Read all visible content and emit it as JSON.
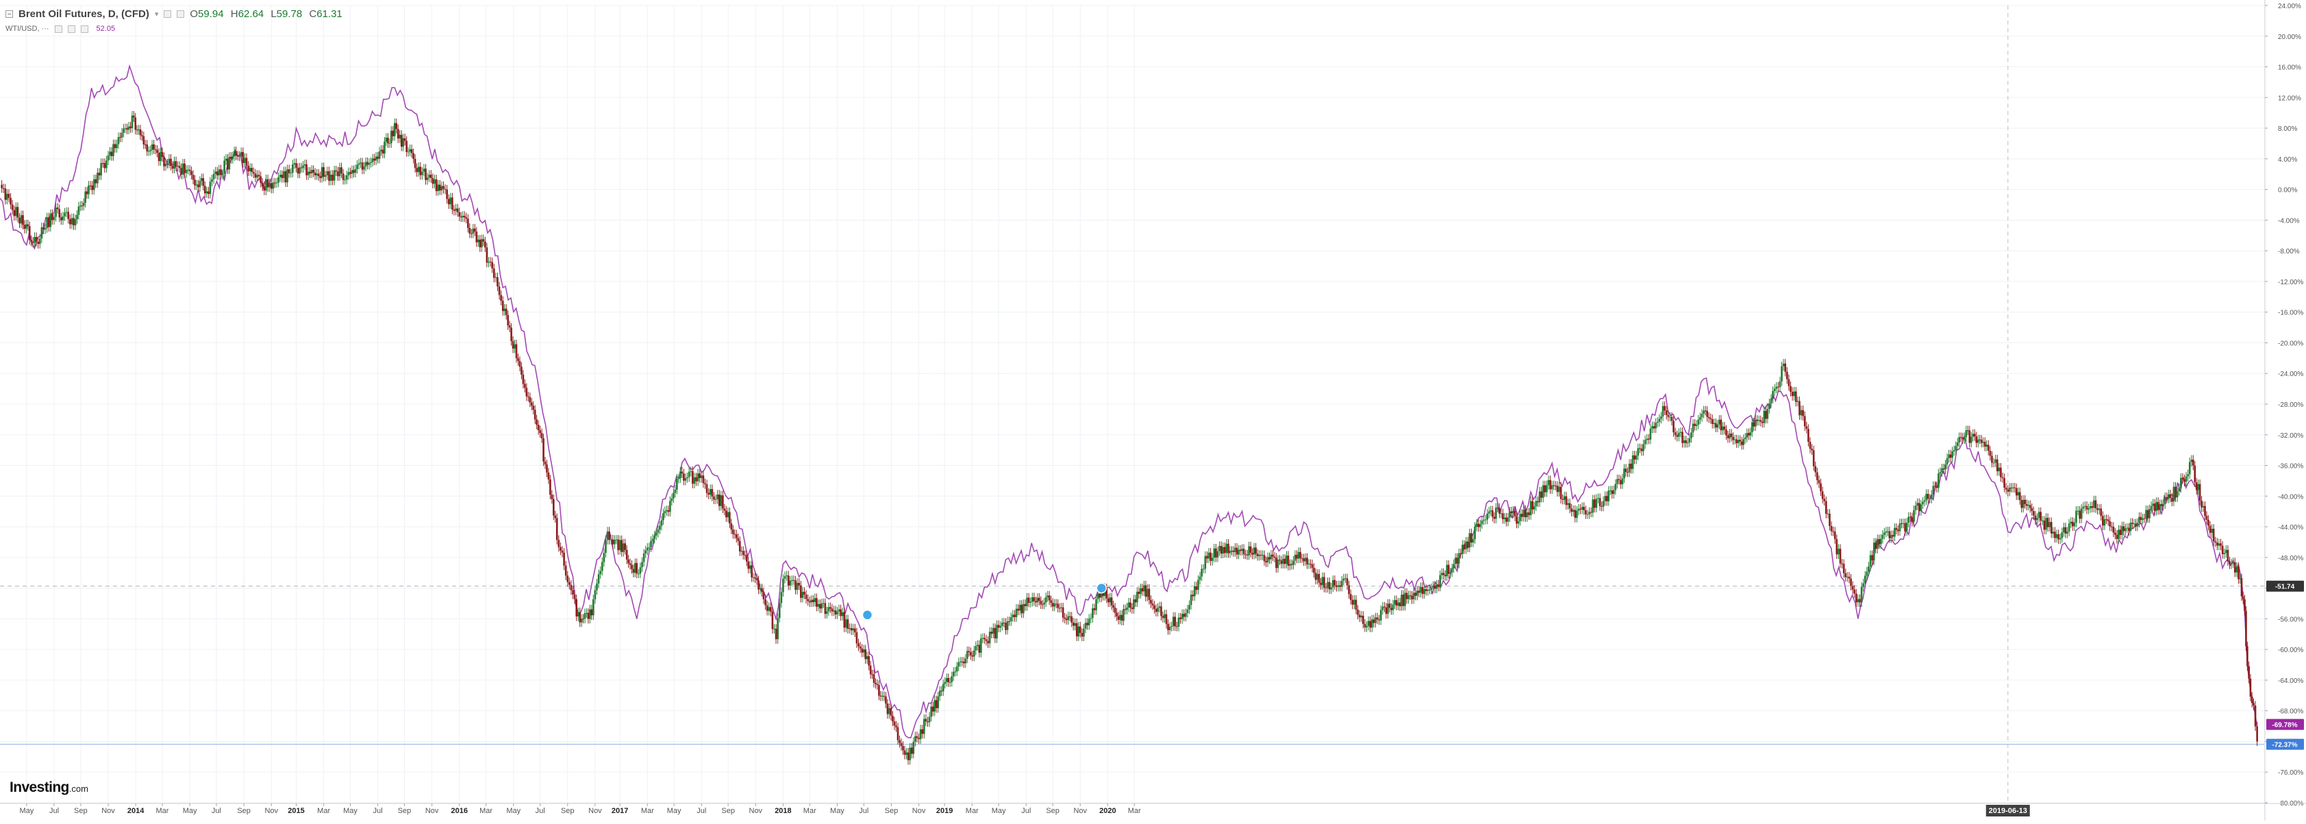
{
  "header": {
    "symbol_title": "Brent Oil Futures, D, (CFD)",
    "ohlc": [
      {
        "key": "O",
        "value": "59.94"
      },
      {
        "key": "H",
        "value": "62.64"
      },
      {
        "key": "L",
        "value": "59.78"
      },
      {
        "key": "C",
        "value": "61.31"
      }
    ]
  },
  "overlay": {
    "name": "WTI/USD, ···",
    "value": "52.05"
  },
  "logo": {
    "main": "Investing",
    "suffix": ".com"
  },
  "colors": {
    "up_candle": "#1f7a2e",
    "down_candle": "#8b1a1a",
    "overlay_line": "#a348b3",
    "grid": "#eef1f5",
    "badge_black": "#333333",
    "badge_purple": "#9b27a3",
    "badge_blue": "#3f7fd9",
    "cursor_badge": "#404040"
  },
  "chart_data": {
    "type": "line",
    "y_unit": "%",
    "y_ticks": [
      "24.00%",
      "20.00%",
      "16.00%",
      "12.00%",
      "8.00%",
      "4.00%",
      "0.00%",
      "-4.00%",
      "-8.00%",
      "-12.00%",
      "-16.00%",
      "-20.00%",
      "-24.00%",
      "-28.00%",
      "-32.00%",
      "-36.00%",
      "-40.00%",
      "-44.00%",
      "-48.00%",
      "-52.00%",
      "-56.00%",
      "-60.00%",
      "-64.00%",
      "-68.00%",
      "-72.00%",
      "-76.00%",
      "-80.00%"
    ],
    "x_ticks": [
      "May",
      "Jul",
      "Sep",
      "Nov",
      "2014",
      "Mar",
      "May",
      "Jul",
      "Sep",
      "Nov",
      "2015",
      "Mar",
      "May",
      "Jul",
      "Sep",
      "Nov",
      "2016",
      "Mar",
      "May",
      "Jul",
      "Sep",
      "Nov",
      "2017",
      "Mar",
      "May",
      "Jul",
      "Sep",
      "Nov",
      "2018",
      "Mar",
      "May",
      "Jul",
      "Sep",
      "Nov",
      "2019",
      "Mar",
      "May",
      "Jul",
      "Sep",
      "Nov",
      "2020",
      "Mar"
    ],
    "x_start_month": "2013-04",
    "x_end_month": "2020-03",
    "ylim": [
      -80,
      24
    ],
    "grid": true,
    "cursor_label": "2019-06-13",
    "cursor_date": "2019-06-13",
    "price_lines": [
      {
        "value": -51.74,
        "label": "-51.74",
        "style": "dashed"
      },
      {
        "value": -72.37,
        "label": "-72.37%",
        "style": "solid"
      }
    ],
    "last_value_badges": [
      {
        "value": -69.78,
        "label": "-69.78%"
      },
      {
        "value": -72.37,
        "label": "-72.37%"
      }
    ],
    "markers": [
      {
        "date": "2015-12-05",
        "value": -55.5
      },
      {
        "date": "2016-08-25",
        "value": -52.0
      }
    ],
    "series": [
      {
        "kind": "candles",
        "points": [
          [
            "2013-04-01",
            0
          ],
          [
            "2013-04-25",
            -4
          ],
          [
            "2013-05-10",
            -7
          ],
          [
            "2013-06-01",
            -3
          ],
          [
            "2013-06-25",
            -4
          ],
          [
            "2013-07-10",
            0
          ],
          [
            "2013-08-01",
            4
          ],
          [
            "2013-08-28",
            9
          ],
          [
            "2013-09-10",
            6
          ],
          [
            "2013-10-01",
            4
          ],
          [
            "2013-11-01",
            2
          ],
          [
            "2013-11-20",
            0
          ],
          [
            "2013-12-10",
            3
          ],
          [
            "2013-12-25",
            5
          ],
          [
            "2014-01-10",
            2
          ],
          [
            "2014-02-01",
            0
          ],
          [
            "2014-03-01",
            3
          ],
          [
            "2014-04-01",
            2
          ],
          [
            "2014-05-01",
            2
          ],
          [
            "2014-06-01",
            4
          ],
          [
            "2014-06-20",
            8
          ],
          [
            "2014-07-15",
            3
          ],
          [
            "2014-08-10",
            0
          ],
          [
            "2014-09-01",
            -3
          ],
          [
            "2014-09-30",
            -8
          ],
          [
            "2014-10-20",
            -15
          ],
          [
            "2014-11-10",
            -24
          ],
          [
            "2014-12-01",
            -32
          ],
          [
            "2014-12-20",
            -45
          ],
          [
            "2015-01-13",
            -56
          ],
          [
            "2015-01-28",
            -55
          ],
          [
            "2015-02-15",
            -45
          ],
          [
            "2015-03-05",
            -47
          ],
          [
            "2015-03-20",
            -50
          ],
          [
            "2015-04-15",
            -44
          ],
          [
            "2015-05-10",
            -37
          ],
          [
            "2015-06-01",
            -38
          ],
          [
            "2015-06-25",
            -41
          ],
          [
            "2015-07-20",
            -48
          ],
          [
            "2015-08-10",
            -53
          ],
          [
            "2015-08-24",
            -58
          ],
          [
            "2015-09-01",
            -50
          ],
          [
            "2015-10-01",
            -54
          ],
          [
            "2015-11-01",
            -55
          ],
          [
            "2015-12-01",
            -60
          ],
          [
            "2015-12-20",
            -66
          ],
          [
            "2016-01-20",
            -74
          ],
          [
            "2016-02-15",
            -68
          ],
          [
            "2016-03-15",
            -62
          ],
          [
            "2016-04-15",
            -59
          ],
          [
            "2016-05-15",
            -56
          ],
          [
            "2016-06-10",
            -53
          ],
          [
            "2016-07-01",
            -54
          ],
          [
            "2016-08-01",
            -58
          ],
          [
            "2016-08-25",
            -52
          ],
          [
            "2016-09-15",
            -56
          ],
          [
            "2016-10-10",
            -52
          ],
          [
            "2016-11-10",
            -57
          ],
          [
            "2016-11-30",
            -55
          ],
          [
            "2016-12-20",
            -48
          ],
          [
            "2017-01-15",
            -47
          ],
          [
            "2017-02-15",
            -47
          ],
          [
            "2017-03-10",
            -49
          ],
          [
            "2017-04-10",
            -48
          ],
          [
            "2017-05-05",
            -52
          ],
          [
            "2017-05-25",
            -51
          ],
          [
            "2017-06-20",
            -57
          ],
          [
            "2017-07-10",
            -55
          ],
          [
            "2017-08-10",
            -53
          ],
          [
            "2017-09-05",
            -52
          ],
          [
            "2017-09-30",
            -48
          ],
          [
            "2017-11-05",
            -42
          ],
          [
            "2017-12-10",
            -43
          ],
          [
            "2018-01-15",
            -38
          ],
          [
            "2018-02-10",
            -42
          ],
          [
            "2018-03-10",
            -41
          ],
          [
            "2018-04-20",
            -35
          ],
          [
            "2018-05-20",
            -29
          ],
          [
            "2018-06-15",
            -33
          ],
          [
            "2018-07-05",
            -29
          ],
          [
            "2018-08-15",
            -33
          ],
          [
            "2018-09-15",
            -29
          ],
          [
            "2018-10-03",
            -23
          ],
          [
            "2018-10-25",
            -30
          ],
          [
            "2018-11-20",
            -42
          ],
          [
            "2018-12-10",
            -50
          ],
          [
            "2018-12-26",
            -54
          ],
          [
            "2019-01-15",
            -46
          ],
          [
            "2019-02-15",
            -44
          ],
          [
            "2019-03-15",
            -40
          ],
          [
            "2019-04-25",
            -32
          ],
          [
            "2019-05-20",
            -34
          ],
          [
            "2019-06-13",
            -39
          ],
          [
            "2019-07-10",
            -42
          ],
          [
            "2019-08-07",
            -45
          ],
          [
            "2019-09-16",
            -41
          ],
          [
            "2019-10-10",
            -45
          ],
          [
            "2019-11-10",
            -43
          ],
          [
            "2019-12-15",
            -40
          ],
          [
            "2020-01-06",
            -36
          ],
          [
            "2020-01-25",
            -44
          ],
          [
            "2020-02-10",
            -47
          ],
          [
            "2020-02-28",
            -50
          ],
          [
            "2020-03-06",
            -55
          ],
          [
            "2020-03-09",
            -63
          ],
          [
            "2020-03-16",
            -68
          ],
          [
            "2020-03-20",
            -72
          ]
        ]
      },
      {
        "kind": "line",
        "points": [
          [
            "2013-04-01",
            -2
          ],
          [
            "2013-04-25",
            -6
          ],
          [
            "2013-05-10",
            -7
          ],
          [
            "2013-06-01",
            -2
          ],
          [
            "2013-06-25",
            2
          ],
          [
            "2013-07-10",
            12
          ],
          [
            "2013-08-01",
            13
          ],
          [
            "2013-08-28",
            16
          ],
          [
            "2013-09-10",
            10
          ],
          [
            "2013-10-01",
            5
          ],
          [
            "2013-11-01",
            0
          ],
          [
            "2013-11-20",
            -2
          ],
          [
            "2013-12-10",
            2
          ],
          [
            "2013-12-25",
            5
          ],
          [
            "2014-01-10",
            0
          ],
          [
            "2014-02-01",
            2
          ],
          [
            "2014-03-01",
            7
          ],
          [
            "2014-04-01",
            6
          ],
          [
            "2014-05-01",
            7
          ],
          [
            "2014-06-01",
            10
          ],
          [
            "2014-06-20",
            13
          ],
          [
            "2014-07-15",
            9
          ],
          [
            "2014-08-10",
            3
          ],
          [
            "2014-09-01",
            0
          ],
          [
            "2014-09-30",
            -4
          ],
          [
            "2014-10-20",
            -12
          ],
          [
            "2014-11-10",
            -18
          ],
          [
            "2014-12-01",
            -26
          ],
          [
            "2014-12-20",
            -40
          ],
          [
            "2015-01-13",
            -55
          ],
          [
            "2015-01-28",
            -52
          ],
          [
            "2015-02-15",
            -44
          ],
          [
            "2015-03-05",
            -52
          ],
          [
            "2015-03-20",
            -55
          ],
          [
            "2015-04-15",
            -42
          ],
          [
            "2015-05-10",
            -36
          ],
          [
            "2015-06-01",
            -36
          ],
          [
            "2015-06-25",
            -38
          ],
          [
            "2015-07-20",
            -46
          ],
          [
            "2015-08-10",
            -52
          ],
          [
            "2015-08-24",
            -56
          ],
          [
            "2015-09-01",
            -48
          ],
          [
            "2015-10-01",
            -51
          ],
          [
            "2015-11-01",
            -53
          ],
          [
            "2015-12-01",
            -58
          ],
          [
            "2015-12-20",
            -64
          ],
          [
            "2016-01-20",
            -71
          ],
          [
            "2016-02-15",
            -66
          ],
          [
            "2016-03-15",
            -58
          ],
          [
            "2016-04-15",
            -52
          ],
          [
            "2016-05-15",
            -48
          ],
          [
            "2016-06-10",
            -47
          ],
          [
            "2016-07-01",
            -50
          ],
          [
            "2016-08-01",
            -55
          ],
          [
            "2016-08-25",
            -52
          ],
          [
            "2016-09-15",
            -52
          ],
          [
            "2016-10-10",
            -47
          ],
          [
            "2016-11-10",
            -52
          ],
          [
            "2016-11-30",
            -50
          ],
          [
            "2016-12-20",
            -44
          ],
          [
            "2017-01-15",
            -43
          ],
          [
            "2017-02-15",
            -43
          ],
          [
            "2017-03-10",
            -47
          ],
          [
            "2017-04-10",
            -44
          ],
          [
            "2017-05-05",
            -49
          ],
          [
            "2017-05-25",
            -47
          ],
          [
            "2017-06-20",
            -53
          ],
          [
            "2017-07-10",
            -51
          ],
          [
            "2017-08-10",
            -51
          ],
          [
            "2017-09-05",
            -52
          ],
          [
            "2017-09-30",
            -49
          ],
          [
            "2017-11-05",
            -41
          ],
          [
            "2017-12-10",
            -42
          ],
          [
            "2018-01-15",
            -36
          ],
          [
            "2018-02-10",
            -40
          ],
          [
            "2018-03-10",
            -38
          ],
          [
            "2018-04-20",
            -32
          ],
          [
            "2018-05-20",
            -27
          ],
          [
            "2018-06-15",
            -32
          ],
          [
            "2018-07-05",
            -25
          ],
          [
            "2018-08-15",
            -31
          ],
          [
            "2018-09-15",
            -28
          ],
          [
            "2018-10-03",
            -26
          ],
          [
            "2018-10-25",
            -35
          ],
          [
            "2018-11-20",
            -46
          ],
          [
            "2018-12-10",
            -52
          ],
          [
            "2018-12-26",
            -55
          ],
          [
            "2019-01-15",
            -47
          ],
          [
            "2019-02-15",
            -45
          ],
          [
            "2019-03-15",
            -41
          ],
          [
            "2019-04-25",
            -33
          ],
          [
            "2019-05-20",
            -36
          ],
          [
            "2019-06-13",
            -44
          ],
          [
            "2019-07-10",
            -43
          ],
          [
            "2019-08-07",
            -48
          ],
          [
            "2019-09-16",
            -43
          ],
          [
            "2019-10-10",
            -47
          ],
          [
            "2019-11-10",
            -44
          ],
          [
            "2019-12-15",
            -40
          ],
          [
            "2020-01-06",
            -37
          ],
          [
            "2020-01-25",
            -46
          ],
          [
            "2020-02-10",
            -49
          ],
          [
            "2020-02-28",
            -49
          ],
          [
            "2020-03-06",
            -55
          ],
          [
            "2020-03-09",
            -63
          ],
          [
            "2020-03-16",
            -68
          ],
          [
            "2020-03-20",
            -70
          ]
        ]
      }
    ]
  }
}
